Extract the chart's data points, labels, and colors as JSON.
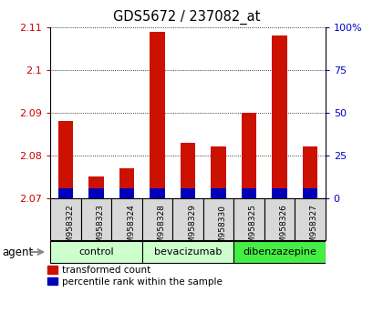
{
  "title": "GDS5672 / 237082_at",
  "samples": [
    "GSM958322",
    "GSM958323",
    "GSM958324",
    "GSM958328",
    "GSM958329",
    "GSM958330",
    "GSM958325",
    "GSM958326",
    "GSM958327"
  ],
  "transformed_count": [
    2.088,
    2.075,
    2.077,
    2.109,
    2.083,
    2.082,
    2.09,
    2.108,
    2.082
  ],
  "blue_pct": [
    5.5,
    5.5,
    5.5,
    5.5,
    5.5,
    5.5,
    5.5,
    5.5,
    5.5
  ],
  "ylim_left": [
    2.07,
    2.11
  ],
  "ylim_right": [
    0,
    100
  ],
  "yticks_left": [
    2.07,
    2.08,
    2.09,
    2.1,
    2.11
  ],
  "yticks_right": [
    0,
    25,
    50,
    75,
    100
  ],
  "ytick_labels_right": [
    "0",
    "25",
    "50",
    "75",
    "100%"
  ],
  "groups": [
    {
      "label": "control",
      "start": 0,
      "end": 3,
      "color": "#ccffcc"
    },
    {
      "label": "bevacizumab",
      "start": 3,
      "end": 6,
      "color": "#ccffcc"
    },
    {
      "label": "dibenzazepine",
      "start": 6,
      "end": 9,
      "color": "#44ee44"
    }
  ],
  "bar_color_red": "#cc1100",
  "bar_color_blue": "#0000bb",
  "bar_width": 0.5,
  "label_color_left": "#cc0000",
  "label_color_right": "#0000cc",
  "agent_label": "agent",
  "legend_red": "transformed count",
  "legend_blue": "percentile rank within the sample",
  "base_value": 2.07,
  "tick_bg_color": "#d8d8d8",
  "plot_bg_color": "#ffffff"
}
